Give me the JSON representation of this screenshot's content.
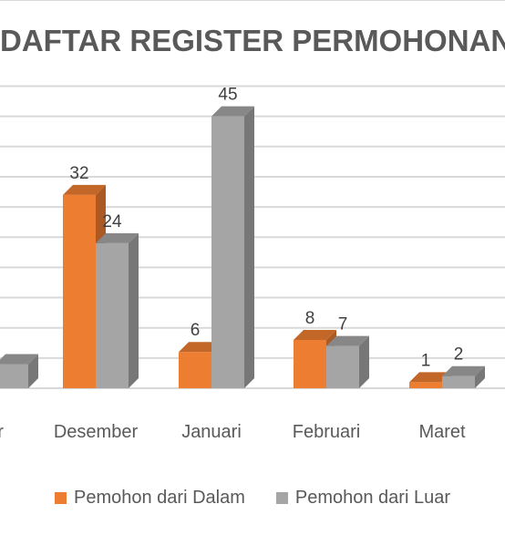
{
  "chart_data": {
    "type": "bar",
    "title": "DAFTAR REGISTER PERMOHONAN",
    "categories": [
      "er",
      "Desember",
      "Januari",
      "Februari",
      "Maret"
    ],
    "series": [
      {
        "name": "Pemohon dari Dalam",
        "color": "#ed7d31",
        "values": [
          null,
          32,
          6,
          8,
          1
        ]
      },
      {
        "name": "Pemohon dari Luar",
        "color": "#a5a5a5",
        "values": [
          null,
          24,
          45,
          7,
          2
        ]
      }
    ],
    "partial_visible_value": 4,
    "ylim": [
      0,
      45
    ],
    "grid": true,
    "legend_position": "bottom",
    "xlabel": "",
    "ylabel": ""
  }
}
